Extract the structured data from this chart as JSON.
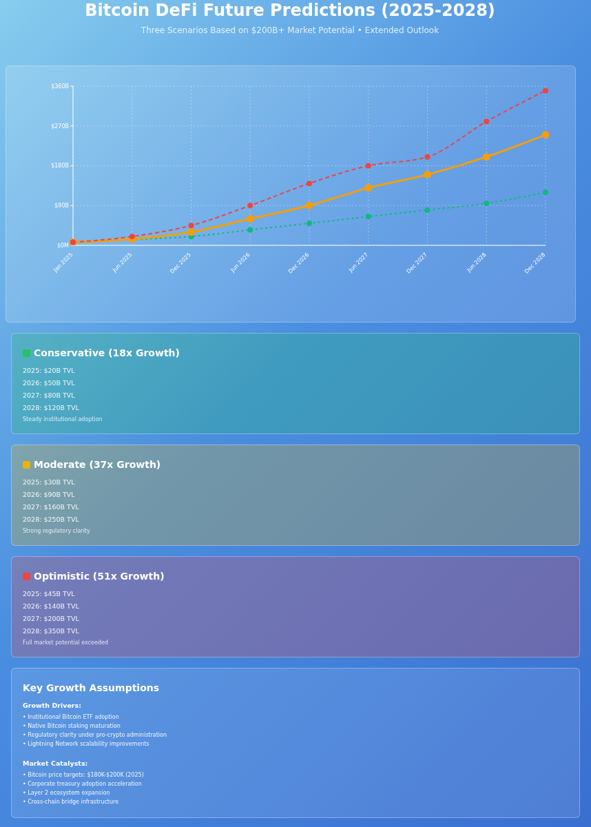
{
  "chart_data": [
    {
      "type": "line",
      "title": "Bitcoin DeFi Future Predictions (2025-2028)",
      "subtitle": "Three Scenarios Based on $200B+ Market Potential • Extended Outlook",
      "categories": [
        "Jan 2025",
        "Jun 2025",
        "Dec 2025",
        "Jun 2026",
        "Dec 2026",
        "Jun 2027",
        "Dec 2027",
        "Jun 2028",
        "Dec 2028"
      ],
      "series": [
        {
          "color": "#10b981",
          "line_style": "dotted",
          "values": [
            7,
            13,
            20,
            35,
            50,
            65,
            80,
            95,
            120
          ]
        },
        {
          "color": "#f59e0b",
          "line_style": "solid",
          "values": [
            7,
            14,
            30,
            60,
            90,
            130,
            160,
            200,
            250
          ]
        },
        {
          "color": "#ef4444",
          "line_style": "dashed",
          "values": [
            7,
            20,
            45,
            90,
            140,
            180,
            200,
            280,
            350
          ]
        }
      ],
      "ylim": [
        0,
        360
      ],
      "yticks": [
        {
          "value": 0,
          "label": "$0M"
        },
        {
          "value": 90,
          "label": "$90B"
        },
        {
          "value": 180,
          "label": "$180B"
        },
        {
          "value": 270,
          "label": "$270B"
        },
        {
          "value": 360,
          "label": "$360B"
        }
      ],
      "grid": true,
      "marker": "circle"
    },
    {
      "type": "other",
      "title": "Conservative (18x Growth)",
      "color": "#22c55e",
      "annotations": [
        "2025: $20B TVL",
        "2026: $50B TVL",
        "2027: $80B TVL",
        "2028: $120B TVL"
      ],
      "subtitle": "Steady institutional adoption"
    },
    {
      "type": "other",
      "title": "Moderate (37x Growth)",
      "color": "#eab308",
      "annotations": [
        "2025: $30B TVL",
        "2026: $90B TVL",
        "2027: $160B TVL",
        "2028: $250B TVL"
      ],
      "subtitle": "Strong regulatory clarity"
    },
    {
      "type": "other",
      "title": "Optimistic (51x Growth)",
      "color": "#ef4444",
      "annotations": [
        "2025: $45B TVL",
        "2026: $140B TVL",
        "2027: $200B TVL",
        "2028: $350B TVL"
      ],
      "subtitle": "Full market potential exceeded"
    },
    {
      "type": "other",
      "title": "Key Growth Assumptions",
      "subtitle": "Growth Drivers:",
      "annotations": [
        "• Institutional Bitcoin ETF adoption",
        "• Native Bitcoin staking maturation",
        "• Regulatory clarity under pro-crypto administration",
        "• Lightning Network scalability improvements"
      ]
    },
    {
      "type": "other",
      "subtitle": "Market Catalysts:",
      "annotations": [
        "• Bitcoin price targets: $180K-$200K (2025)",
        "• Corporate treasury adoption acceleration",
        "• Layer 2 ecosystem expansion",
        "• Cross-chain bridge infrastructure"
      ]
    }
  ]
}
